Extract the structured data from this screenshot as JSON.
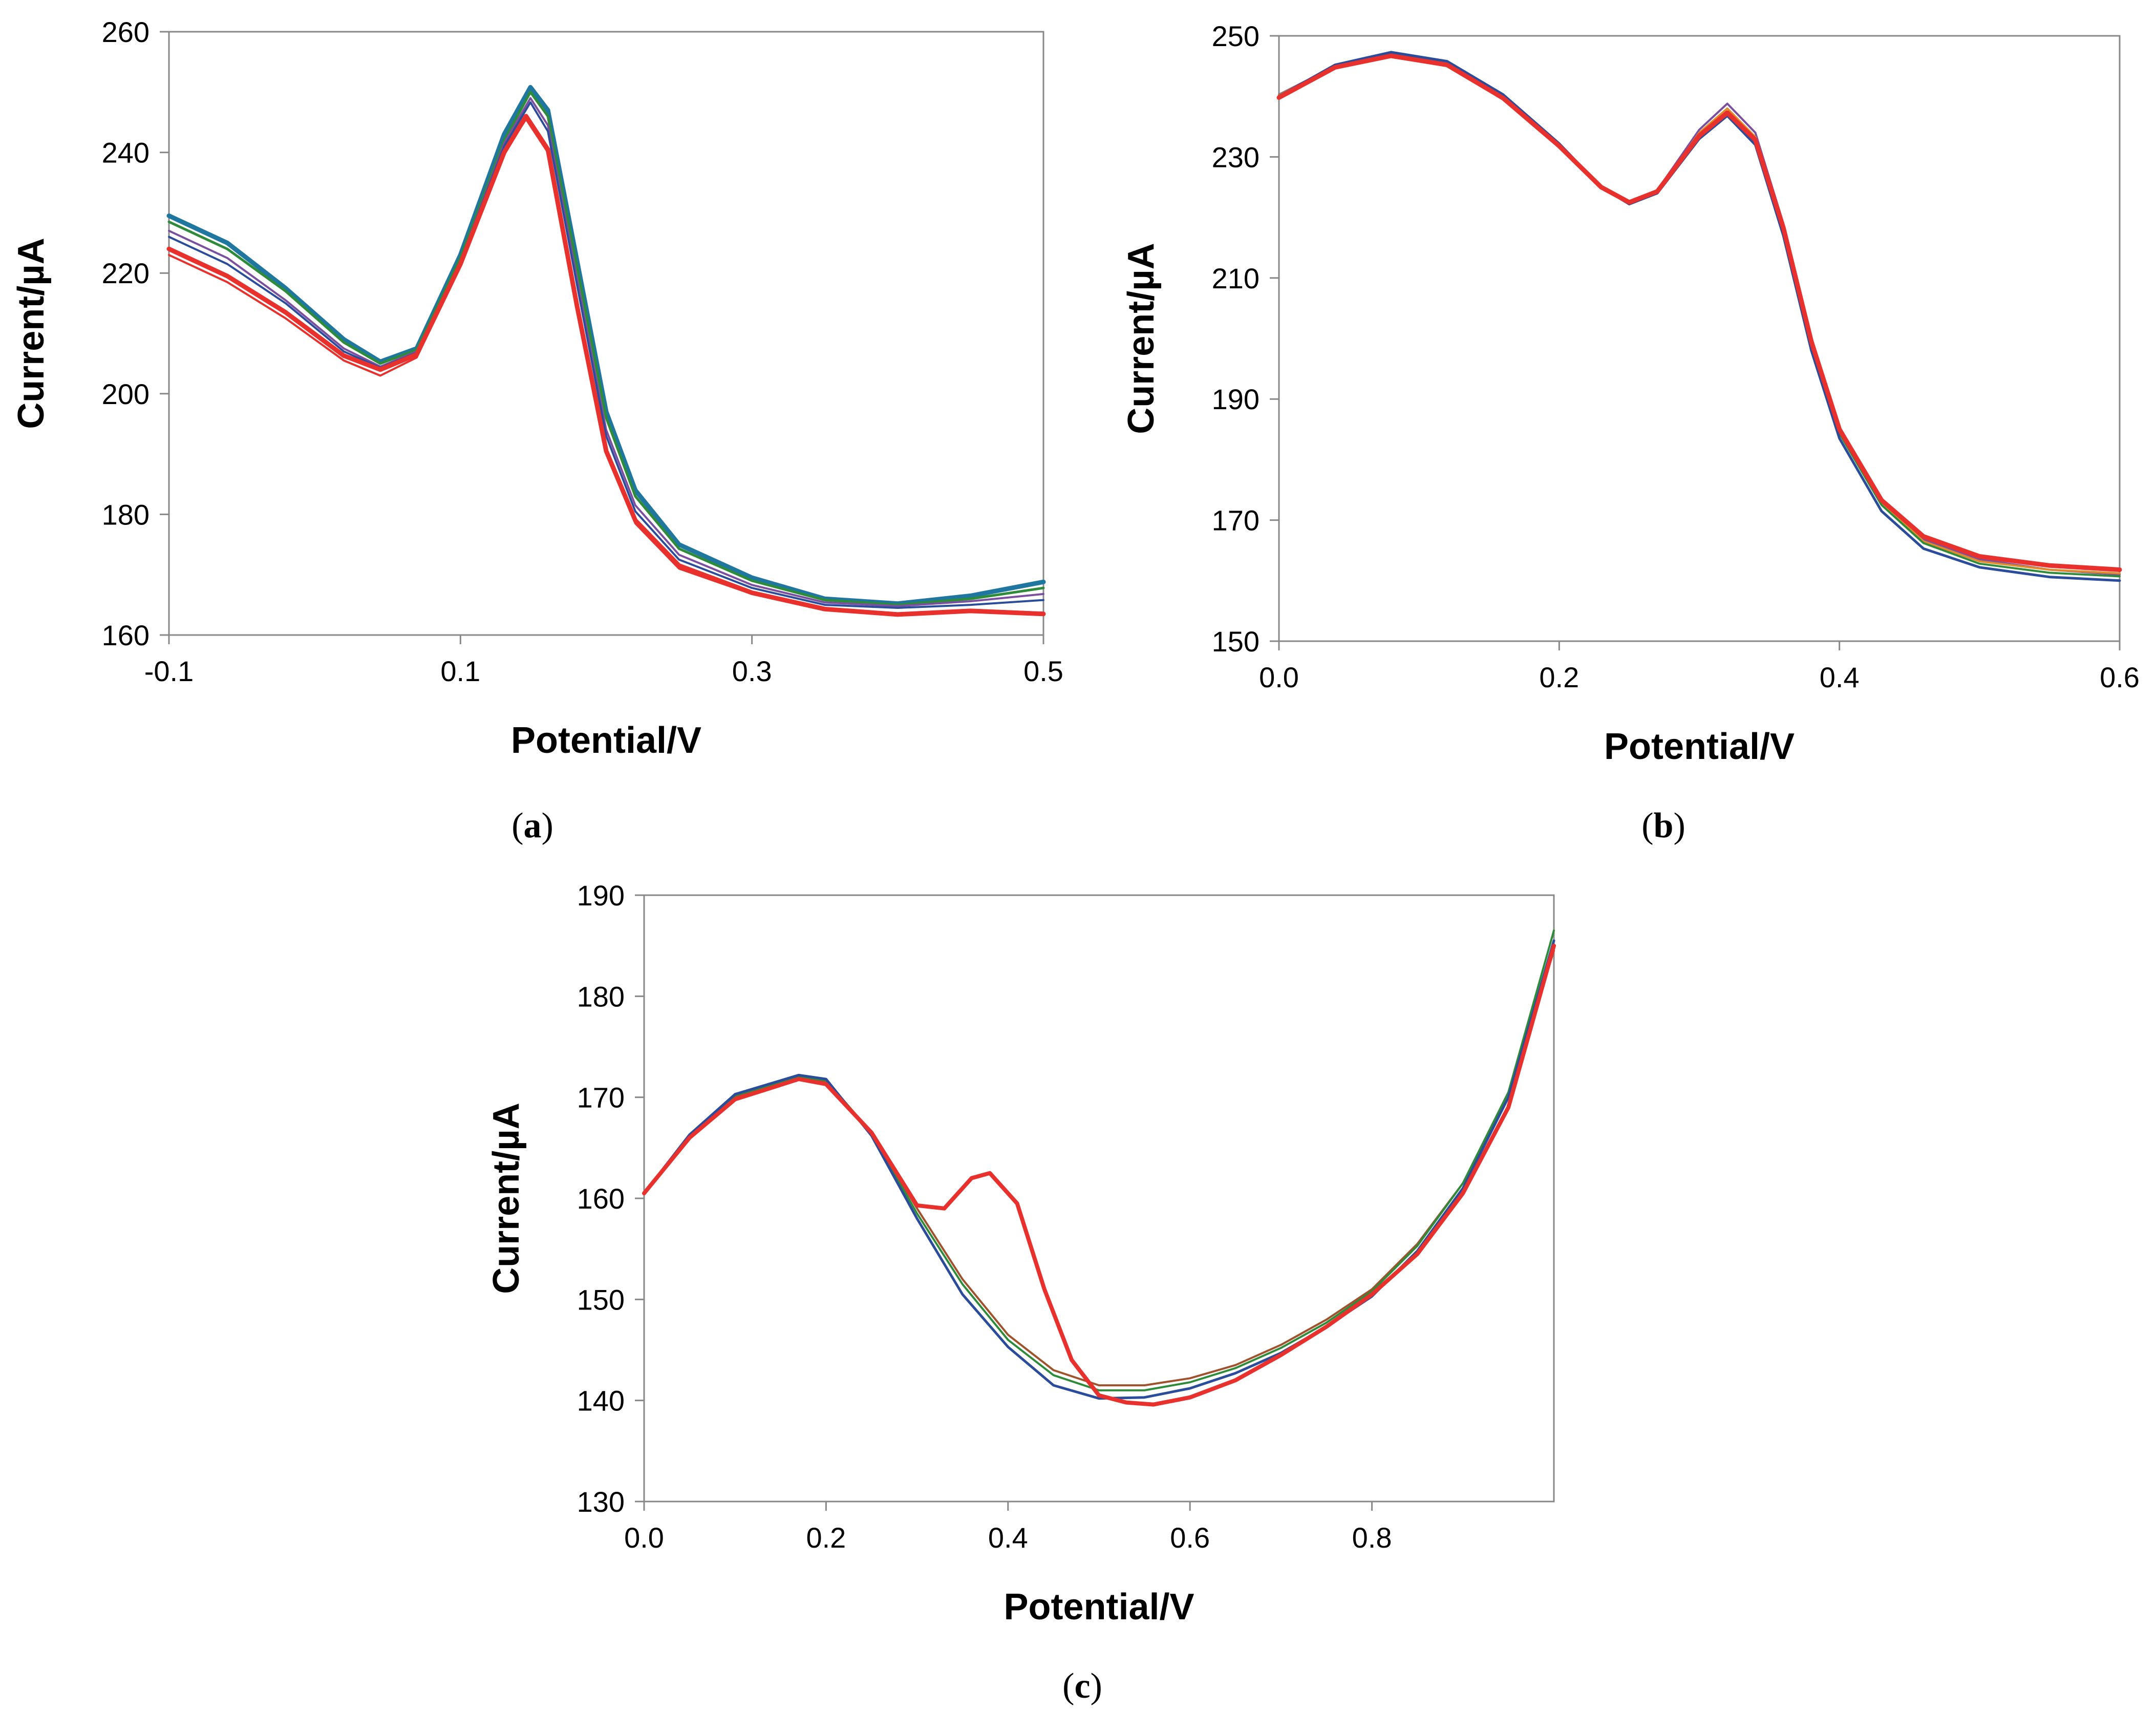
{
  "chart_data": [
    {
      "id": "a",
      "type": "line",
      "panel_label": "a",
      "xlabel": "Potential/V",
      "ylabel": "Current/µA",
      "xlim": [
        -0.1,
        0.5
      ],
      "ylim": [
        160,
        260
      ],
      "xticks": [
        -0.1,
        0.1,
        0.3,
        0.5
      ],
      "xtick_labels": [
        "-0.1",
        "0.1",
        "0.3",
        "0.5"
      ],
      "yticks": [
        160,
        180,
        200,
        220,
        240,
        260
      ],
      "ytick_labels": [
        "160",
        "180",
        "200",
        "220",
        "240",
        "260"
      ],
      "series": [
        {
          "name": "teal",
          "color": "#1f77a0",
          "width": 9,
          "x": [
            -0.1,
            -0.06,
            -0.02,
            0.02,
            0.045,
            0.07,
            0.1,
            0.13,
            0.148,
            0.16,
            0.18,
            0.2,
            0.22,
            0.25,
            0.3,
            0.35,
            0.4,
            0.45,
            0.5
          ],
          "y": [
            229.5,
            225,
            217.5,
            209,
            205.3,
            207.5,
            223,
            243,
            250.8,
            247,
            222,
            197,
            184,
            175,
            169.5,
            166,
            165.2,
            166.5,
            168.8
          ]
        },
        {
          "name": "green",
          "color": "#2e8b3a",
          "width": 5,
          "x": [
            -0.1,
            -0.06,
            -0.02,
            0.02,
            0.045,
            0.07,
            0.1,
            0.13,
            0.148,
            0.16,
            0.18,
            0.2,
            0.22,
            0.25,
            0.3,
            0.35,
            0.4,
            0.45,
            0.5
          ],
          "y": [
            228.5,
            224,
            217,
            208.5,
            205,
            207.3,
            222.5,
            242,
            250,
            246,
            221,
            196,
            183,
            174.3,
            169,
            165.8,
            165,
            166,
            167.8
          ]
        },
        {
          "name": "purple",
          "color": "#7b4fa0",
          "width": 4,
          "x": [
            -0.1,
            -0.06,
            -0.02,
            0.02,
            0.045,
            0.07,
            0.1,
            0.13,
            0.148,
            0.16,
            0.18,
            0.2,
            0.22,
            0.25,
            0.3,
            0.35,
            0.4,
            0.45,
            0.5
          ],
          "y": [
            227,
            222.5,
            215.5,
            207.5,
            204.5,
            207,
            222,
            241.5,
            249,
            244.5,
            219,
            194,
            181.5,
            173.3,
            168.3,
            165.4,
            164.8,
            165.6,
            166.8
          ]
        },
        {
          "name": "blue",
          "color": "#2b4c9b",
          "width": 4,
          "x": [
            -0.1,
            -0.06,
            -0.02,
            0.02,
            0.045,
            0.07,
            0.1,
            0.13,
            0.148,
            0.16,
            0.18,
            0.2,
            0.22,
            0.25,
            0.3,
            0.35,
            0.4,
            0.45,
            0.5
          ],
          "y": [
            226,
            221.5,
            215,
            207,
            204.3,
            206.8,
            222,
            241,
            248.3,
            243.5,
            218,
            193,
            180.5,
            172.5,
            167.8,
            165,
            164.5,
            165,
            165.8
          ]
        },
        {
          "name": "red-thin",
          "color": "#e8302c",
          "width": 4,
          "x": [
            -0.1,
            -0.06,
            -0.02,
            0.02,
            0.045,
            0.07,
            0.1,
            0.13,
            0.145,
            0.16,
            0.18,
            0.2,
            0.22,
            0.25,
            0.3,
            0.35,
            0.4,
            0.45,
            0.5
          ],
          "y": [
            223,
            218.5,
            212.5,
            205.5,
            203,
            206,
            221.5,
            240,
            245.5,
            240,
            214,
            190,
            178.5,
            171,
            166.8,
            164.3,
            163.6,
            164.2,
            163.7
          ]
        },
        {
          "name": "red-thick",
          "color": "#e8302c",
          "width": 9,
          "x": [
            -0.1,
            -0.06,
            -0.02,
            0.02,
            0.045,
            0.07,
            0.1,
            0.13,
            0.145,
            0.16,
            0.18,
            0.2,
            0.22,
            0.25,
            0.3,
            0.35,
            0.4,
            0.45,
            0.5
          ],
          "y": [
            224,
            219.5,
            213.5,
            206.3,
            204,
            206.5,
            221.5,
            240,
            246,
            240.5,
            214.5,
            190.5,
            179,
            171.5,
            167,
            164.3,
            163.4,
            164,
            163.5
          ]
        }
      ]
    },
    {
      "id": "b",
      "type": "line",
      "panel_label": "b",
      "xlabel": "Potential/V",
      "ylabel": "Current/µA",
      "xlim": [
        0.0,
        0.6
      ],
      "ylim": [
        150,
        250
      ],
      "xticks": [
        0.0,
        0.2,
        0.4,
        0.6
      ],
      "xtick_labels": [
        "0.0",
        "0.2",
        "0.4",
        "0.6"
      ],
      "yticks": [
        150,
        170,
        190,
        210,
        230,
        250
      ],
      "ytick_labels": [
        "150",
        "170",
        "190",
        "210",
        "230",
        "250"
      ],
      "series": [
        {
          "name": "purple",
          "color": "#7b4fa0",
          "width": 4,
          "x": [
            0.0,
            0.04,
            0.08,
            0.12,
            0.16,
            0.2,
            0.23,
            0.25,
            0.27,
            0.3,
            0.32,
            0.34,
            0.36,
            0.38,
            0.4,
            0.43,
            0.46,
            0.5,
            0.55,
            0.6
          ],
          "y": [
            240.3,
            245,
            247,
            245.5,
            240,
            232,
            225,
            222.5,
            224.5,
            234.5,
            238.8,
            234,
            219,
            200,
            185,
            173,
            166.8,
            163.5,
            161.8,
            161
          ]
        },
        {
          "name": "orange",
          "color": "#e08a2a",
          "width": 4,
          "x": [
            0.0,
            0.04,
            0.08,
            0.12,
            0.16,
            0.2,
            0.23,
            0.25,
            0.27,
            0.3,
            0.32,
            0.34,
            0.36,
            0.38,
            0.4,
            0.43,
            0.46,
            0.5,
            0.55,
            0.6
          ],
          "y": [
            240.2,
            245,
            247,
            245.5,
            240,
            232,
            225,
            222.4,
            224.3,
            234,
            238,
            233.3,
            218.5,
            199.5,
            184.7,
            172.8,
            166.5,
            163.2,
            161.8,
            161.2
          ]
        },
        {
          "name": "green",
          "color": "#2e8b3a",
          "width": 4,
          "x": [
            0.0,
            0.04,
            0.08,
            0.12,
            0.16,
            0.2,
            0.23,
            0.25,
            0.27,
            0.3,
            0.32,
            0.34,
            0.36,
            0.38,
            0.4,
            0.43,
            0.46,
            0.5,
            0.55,
            0.6
          ],
          "y": [
            240.1,
            245,
            247,
            245.4,
            239.9,
            232,
            225,
            222.3,
            224.2,
            233.5,
            237.5,
            232.8,
            218,
            199,
            184.3,
            172.5,
            166.2,
            162.8,
            161.3,
            160.7
          ]
        },
        {
          "name": "blue",
          "color": "#2b4c9b",
          "width": 5,
          "x": [
            0.0,
            0.04,
            0.08,
            0.12,
            0.16,
            0.2,
            0.23,
            0.25,
            0.27,
            0.3,
            0.32,
            0.34,
            0.36,
            0.38,
            0.4,
            0.43,
            0.46,
            0.5,
            0.55,
            0.6
          ],
          "y": [
            240,
            245.2,
            247.3,
            245.8,
            240.3,
            232.2,
            225,
            222.2,
            224,
            233,
            236.8,
            232,
            217,
            198,
            183.5,
            171.5,
            165.3,
            162.2,
            160.6,
            160
          ]
        },
        {
          "name": "red-thick",
          "color": "#e8302c",
          "width": 9,
          "x": [
            0.0,
            0.04,
            0.08,
            0.12,
            0.16,
            0.2,
            0.23,
            0.25,
            0.27,
            0.3,
            0.32,
            0.34,
            0.36,
            0.38,
            0.4,
            0.43,
            0.46,
            0.5,
            0.55,
            0.6
          ],
          "y": [
            239.8,
            244.8,
            246.7,
            245.2,
            239.7,
            231.8,
            225,
            222.5,
            224.3,
            233.5,
            237.3,
            232.8,
            218.3,
            199.5,
            185,
            173.3,
            167.3,
            164,
            162.5,
            161.8
          ]
        }
      ]
    },
    {
      "id": "c",
      "type": "line",
      "panel_label": "c",
      "xlabel": "Potential/V",
      "ylabel": "Current/µA",
      "xlim": [
        0.0,
        1.0
      ],
      "ylim": [
        130,
        190
      ],
      "xticks": [
        0.0,
        0.2,
        0.4,
        0.6,
        0.8
      ],
      "xtick_labels": [
        "0.0",
        "0.2",
        "0.4",
        "0.6",
        "0.8"
      ],
      "yticks": [
        130,
        140,
        150,
        160,
        170,
        180,
        190
      ],
      "ytick_labels": [
        "130",
        "140",
        "150",
        "160",
        "170",
        "180",
        "190"
      ],
      "series": [
        {
          "name": "brown",
          "color": "#a0522d",
          "width": 4,
          "x": [
            0.0,
            0.05,
            0.1,
            0.17,
            0.2,
            0.25,
            0.3,
            0.35,
            0.4,
            0.45,
            0.5,
            0.55,
            0.6,
            0.65,
            0.7,
            0.75,
            0.8,
            0.85,
            0.9,
            0.95,
            1.0
          ],
          "y": [
            160.5,
            166,
            170,
            172,
            171.5,
            166.5,
            159,
            152,
            146.5,
            143,
            141.5,
            141.5,
            142.2,
            143.5,
            145.5,
            148,
            151,
            155.5,
            161.5,
            170,
            184.5
          ]
        },
        {
          "name": "green",
          "color": "#2e8b3a",
          "width": 4,
          "x": [
            0.0,
            0.05,
            0.1,
            0.17,
            0.2,
            0.25,
            0.3,
            0.35,
            0.4,
            0.45,
            0.5,
            0.55,
            0.6,
            0.65,
            0.7,
            0.75,
            0.8,
            0.85,
            0.9,
            0.95,
            1.0
          ],
          "y": [
            160.5,
            166.2,
            170.2,
            172,
            171.7,
            166.5,
            158.5,
            151.5,
            146,
            142.5,
            141,
            141,
            141.8,
            143.2,
            145.2,
            147.7,
            150.8,
            155.3,
            161.5,
            170.5,
            186.5
          ]
        },
        {
          "name": "blue",
          "color": "#2b4c9b",
          "width": 5,
          "x": [
            0.0,
            0.05,
            0.1,
            0.17,
            0.2,
            0.25,
            0.3,
            0.35,
            0.4,
            0.45,
            0.5,
            0.55,
            0.6,
            0.65,
            0.7,
            0.75,
            0.8,
            0.85,
            0.9,
            0.95,
            1.0
          ],
          "y": [
            160.5,
            166.3,
            170.3,
            172.2,
            171.8,
            166.2,
            158,
            150.5,
            145.3,
            141.5,
            140.2,
            140.3,
            141.2,
            142.7,
            144.7,
            147.3,
            150.3,
            154.8,
            161,
            170,
            185.5
          ]
        },
        {
          "name": "red-thick",
          "color": "#e8302c",
          "width": 8,
          "x": [
            0.0,
            0.05,
            0.1,
            0.17,
            0.2,
            0.25,
            0.3,
            0.33,
            0.36,
            0.38,
            0.41,
            0.44,
            0.47,
            0.5,
            0.53,
            0.56,
            0.6,
            0.65,
            0.7,
            0.75,
            0.8,
            0.85,
            0.9,
            0.95,
            1.0
          ],
          "y": [
            160.5,
            166,
            169.8,
            171.8,
            171.3,
            166.5,
            159.3,
            159,
            162,
            162.5,
            159.5,
            151,
            144,
            140.5,
            139.8,
            139.6,
            140.3,
            142,
            144.5,
            147.3,
            150.5,
            154.5,
            160.5,
            169,
            185
          ]
        }
      ]
    }
  ]
}
